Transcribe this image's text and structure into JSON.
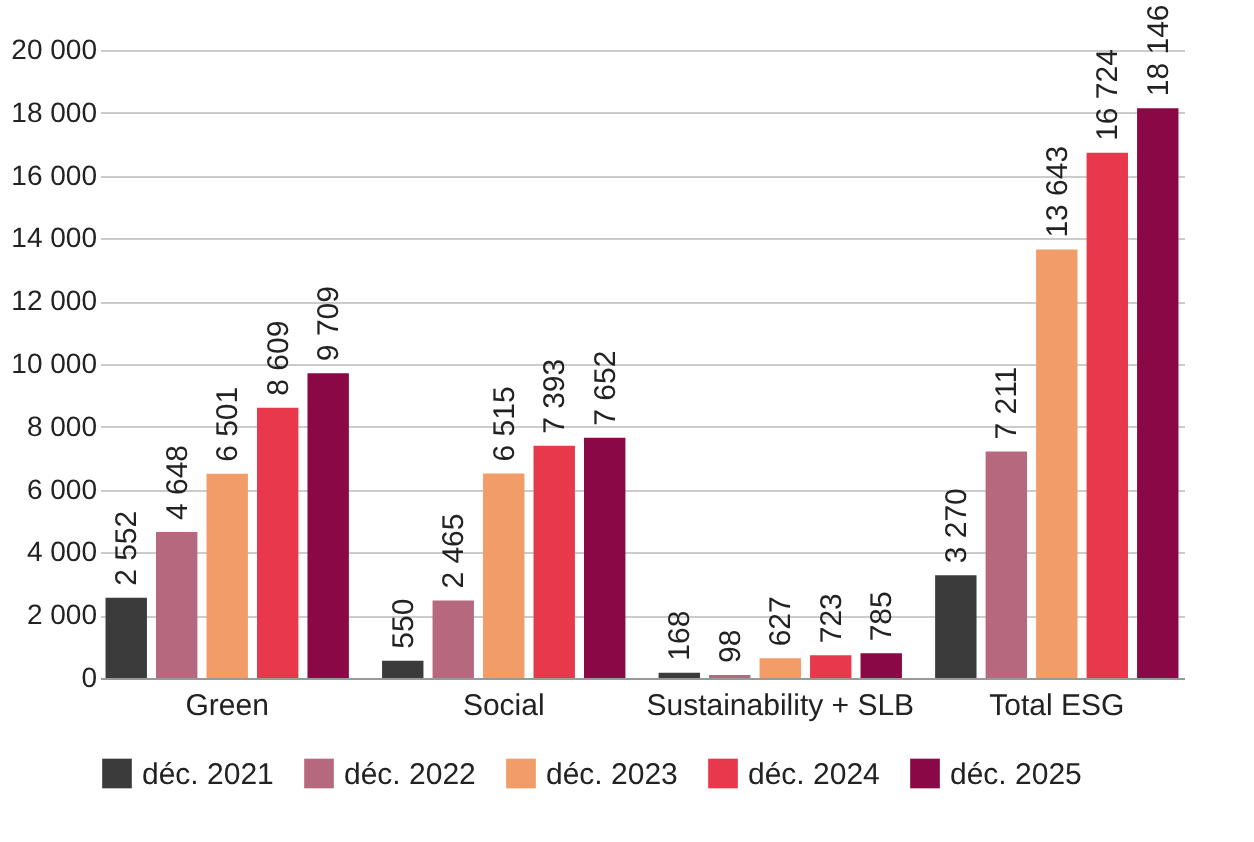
{
  "chart_data": {
    "type": "bar",
    "categories": [
      "Green",
      "Social",
      "Sustainability + SLB",
      "Total ESG"
    ],
    "series": [
      {
        "name": "déc. 2021",
        "color": "#3b3b3b",
        "values": [
          2552,
          550,
          168,
          3270
        ],
        "value_labels": [
          "2 552",
          "550",
          "168",
          "3 270"
        ]
      },
      {
        "name": "déc. 2022",
        "color": "#b6687f",
        "values": [
          4648,
          2465,
          98,
          7211
        ],
        "value_labels": [
          "4 648",
          "2 465",
          "98",
          "7 211"
        ]
      },
      {
        "name": "déc. 2023",
        "color": "#f29c68",
        "values": [
          6501,
          6515,
          627,
          13643
        ],
        "value_labels": [
          "6 501",
          "6 515",
          "627",
          "13 643"
        ]
      },
      {
        "name": "déc. 2024",
        "color": "#e8384b",
        "values": [
          8609,
          7393,
          723,
          16724
        ],
        "value_labels": [
          "8 609",
          "7 393",
          "723",
          "16 724"
        ]
      },
      {
        "name": "déc. 2025",
        "color": "#8a0845",
        "values": [
          9709,
          7652,
          785,
          18146
        ],
        "value_labels": [
          "9 709",
          "7 652",
          "785",
          "18 146"
        ]
      }
    ],
    "ylim": [
      0,
      20000
    ],
    "yticks": [
      0,
      {
        "value": 2000,
        "label": "2 000"
      },
      {
        "value": 4000,
        "label": "4 000"
      },
      {
        "value": 6000,
        "label": "6 000"
      },
      {
        "value": 8000,
        "label": "8 000"
      },
      {
        "value": 10000,
        "label": "10 000"
      },
      {
        "value": 12000,
        "label": "12 000"
      },
      {
        "value": 14000,
        "label": "14 000"
      },
      {
        "value": 16000,
        "label": "16 000"
      },
      {
        "value": 18000,
        "label": "18 000"
      },
      {
        "value": 20000,
        "label": "20 000"
      }
    ],
    "grid": "y",
    "legend": "bottom"
  }
}
